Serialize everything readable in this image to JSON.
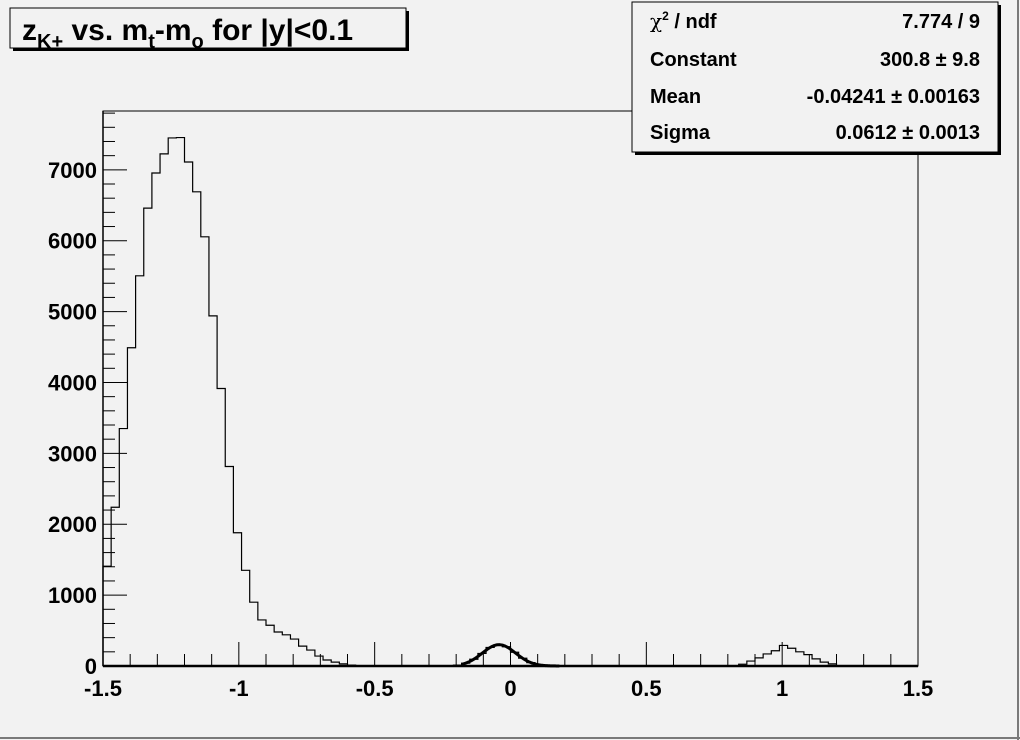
{
  "chart_data": {
    "type": "bar",
    "style": "step-histogram",
    "title": "z_K+ vs. m_t-m_o for |y|<0.1",
    "title_parts": {
      "main": "z",
      "sub1": "K+",
      "mid": " vs. m",
      "sub2": "t",
      "mid2": "-m",
      "sub3": "o",
      "tail": " for |y|<0.1"
    },
    "xlim": [
      -1.5,
      1.5
    ],
    "ylim": [
      0,
      7830
    ],
    "bin_width": 0.03,
    "bin_start": -1.5,
    "xticks": [
      -1.5,
      -1,
      -0.5,
      0,
      0.5,
      1,
      1.5
    ],
    "xtick_labels": [
      "-1.5",
      "-1",
      "-0.5",
      "0",
      "0.5",
      "1",
      "1.5"
    ],
    "yticks": [
      0,
      1000,
      2000,
      3000,
      4000,
      5000,
      6000,
      7000
    ],
    "ytick_labels": [
      "0",
      "1000",
      "2000",
      "3000",
      "4000",
      "5000",
      "6000",
      "7000"
    ],
    "grid": false,
    "values": [
      1408,
      2240,
      3350,
      4490,
      5505,
      6460,
      6955,
      7225,
      7450,
      7455,
      7110,
      6690,
      6055,
      4940,
      3915,
      2815,
      1880,
      1350,
      900,
      650,
      575,
      480,
      440,
      380,
      280,
      225,
      140,
      85,
      55,
      30,
      12,
      6,
      2,
      0,
      0,
      0,
      0,
      0,
      0,
      0,
      0,
      0,
      0,
      13,
      40,
      95,
      177,
      262,
      300,
      272,
      194,
      110,
      48,
      17,
      0,
      0,
      0,
      0,
      0,
      0,
      0,
      0,
      0,
      0,
      0,
      0,
      0,
      0,
      0,
      0,
      0,
      0,
      0,
      0,
      0,
      0,
      0,
      0,
      25,
      70,
      115,
      170,
      215,
      290,
      250,
      200,
      160,
      100,
      55,
      30,
      0,
      0,
      0,
      0,
      0,
      0,
      0,
      0,
      0,
      0
    ],
    "fit": {
      "function": "gaus",
      "range": [
        -0.18,
        0.18
      ],
      "constant": 300.8,
      "mean": -0.04241,
      "sigma": 0.0612
    },
    "legend_placement": "top-right",
    "stats": {
      "rows": [
        {
          "label": "χ² / ndf",
          "label_main": "χ",
          "label_sup": "2",
          "label_rest": " / ndf",
          "value": "7.774 / 9"
        },
        {
          "label": "Constant",
          "value": "300.8 ± 9.8"
        },
        {
          "label": "Mean",
          "value": "-0.04241 ± 0.00163"
        },
        {
          "label": "Sigma",
          "value": "0.0612 ± 0.0013"
        }
      ]
    },
    "colors": {
      "background": "#f2f2f2",
      "line": "#000000"
    }
  }
}
